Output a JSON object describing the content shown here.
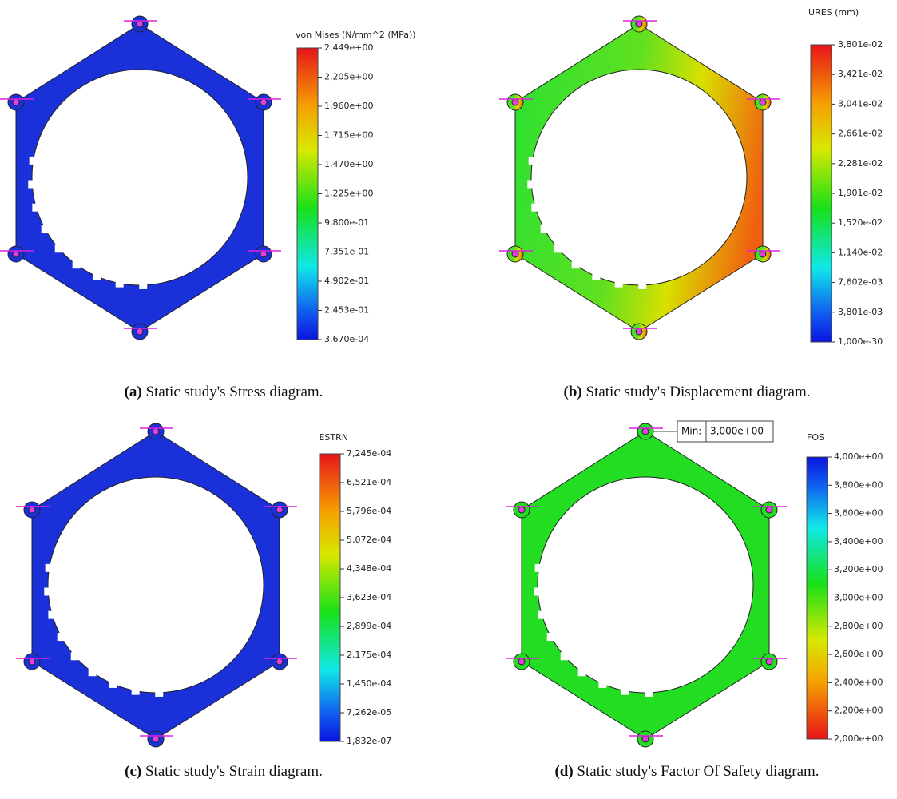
{
  "panels": [
    {
      "legend_title": "von Mises (N/mm^2 (MPa))",
      "legend_ticks": [
        "2,449e+00",
        "2,205e+00",
        "1,960e+00",
        "1,715e+00",
        "1,470e+00",
        "1,225e+00",
        "9,800e-01",
        "7,351e-01",
        "4,902e-01",
        "2,453e-01",
        "3,670e-04"
      ],
      "caption_label": "(a)",
      "caption": "Static study's Stress diagram."
    },
    {
      "legend_title": "URES (mm)",
      "legend_ticks": [
        "3,801e-02",
        "3,421e-02",
        "3,041e-02",
        "2,661e-02",
        "2,281e-02",
        "1,901e-02",
        "1,520e-02",
        "1,140e-02",
        "7,602e-03",
        "3,801e-03",
        "1,000e-30"
      ],
      "caption_label": "(b)",
      "caption": "Static study's Displacement diagram."
    },
    {
      "legend_title": "ESTRN",
      "legend_ticks": [
        "7,245e-04",
        "6,521e-04",
        "5,796e-04",
        "5,072e-04",
        "4,348e-04",
        "3,623e-04",
        "2,899e-04",
        "2,175e-04",
        "1,450e-04",
        "7,262e-05",
        "1,832e-07"
      ],
      "caption_label": "(c)",
      "caption": "Static study's Strain diagram."
    },
    {
      "legend_title": "FOS",
      "legend_ticks": [
        "4,000e+00",
        "3,800e+00",
        "3,600e+00",
        "3,400e+00",
        "3,200e+00",
        "3,000e+00",
        "2,800e+00",
        "2,600e+00",
        "2,400e+00",
        "2,200e+00",
        "2,000e+00"
      ],
      "caption_label": "(d)",
      "caption": "Static study's Factor Of Safety diagram.",
      "annotation": {
        "label": "Min:",
        "value": "3,000e+00"
      }
    }
  ]
}
